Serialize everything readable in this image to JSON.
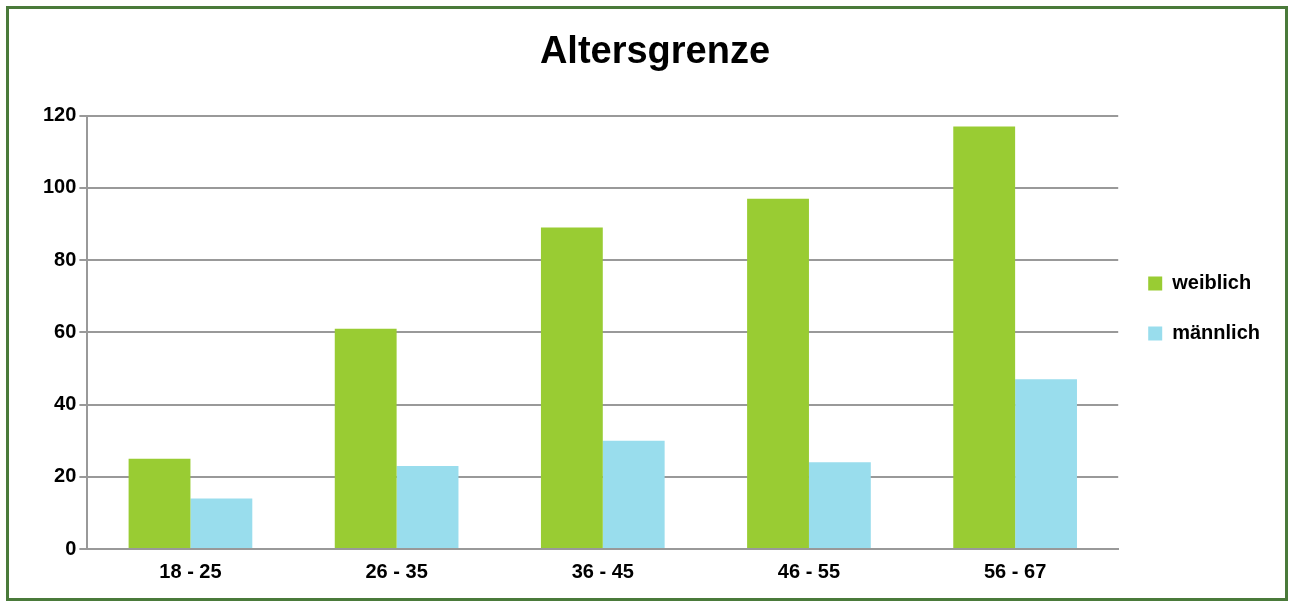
{
  "chart_data": {
    "type": "bar",
    "title": "Altersgrenze",
    "categories": [
      "18 - 25",
      "26 - 35",
      "36 - 45",
      "46 - 55",
      "56 - 67"
    ],
    "series": [
      {
        "name": "weiblich",
        "color": "#99cc33",
        "values": [
          25,
          61,
          89,
          97,
          117
        ]
      },
      {
        "name": "männlich",
        "color": "#99dded",
        "values": [
          14,
          23,
          30,
          24,
          47
        ]
      }
    ],
    "ylim": [
      0,
      120
    ],
    "yticks": [
      0,
      20,
      40,
      60,
      80,
      100,
      120
    ],
    "grid": "y",
    "legend": "right"
  }
}
